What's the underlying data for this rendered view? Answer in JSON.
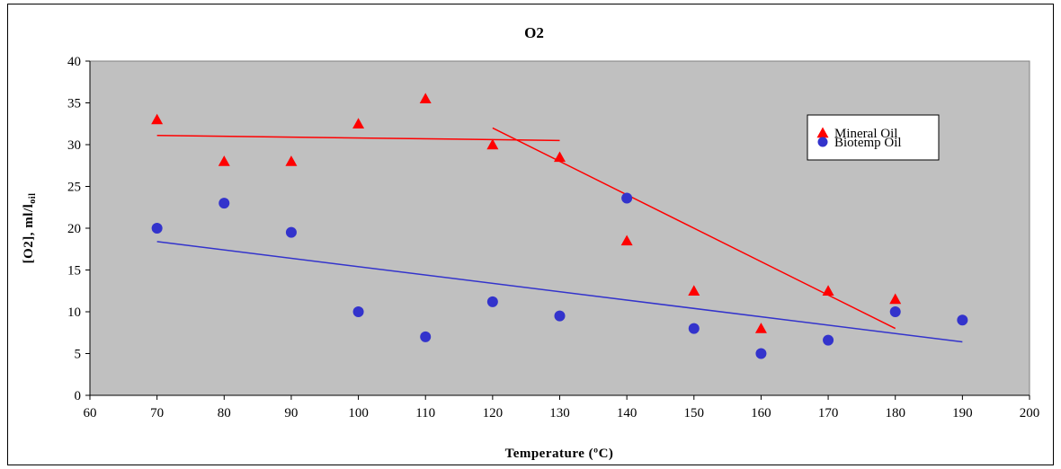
{
  "chart_data": {
    "type": "scatter",
    "title": "O2",
    "xlabel": "Temperature (ºC)",
    "ylabel_main": "[O2],  ml/l",
    "ylabel_sub": "oil",
    "xlim": [
      60,
      200
    ],
    "ylim": [
      0,
      40
    ],
    "x_ticks": [
      60,
      70,
      80,
      90,
      100,
      110,
      120,
      130,
      140,
      150,
      160,
      170,
      180,
      190,
      200
    ],
    "y_ticks": [
      0,
      5,
      10,
      15,
      20,
      25,
      30,
      35,
      40
    ],
    "grid": false,
    "plot_background": "#c0c0c0",
    "legend_position": "top-right",
    "series": [
      {
        "name": "Mineral Oil",
        "marker": "triangle",
        "color": "#ff0000",
        "points": [
          [
            70,
            33
          ],
          [
            80,
            28
          ],
          [
            90,
            28
          ],
          [
            100,
            32.5
          ],
          [
            110,
            35.5
          ],
          [
            120,
            30
          ],
          [
            130,
            28.5
          ],
          [
            140,
            18.5
          ],
          [
            150,
            12.5
          ],
          [
            160,
            8
          ],
          [
            170,
            12.5
          ],
          [
            180,
            11.5
          ]
        ]
      },
      {
        "name": "Biotemp Oil",
        "marker": "circle",
        "color": "#3333cc",
        "points": [
          [
            70,
            20
          ],
          [
            80,
            23
          ],
          [
            90,
            19.5
          ],
          [
            100,
            10
          ],
          [
            110,
            7
          ],
          [
            120,
            11.2
          ],
          [
            130,
            9.5
          ],
          [
            140,
            23.6
          ],
          [
            150,
            8
          ],
          [
            160,
            5
          ],
          [
            170,
            6.6
          ],
          [
            180,
            10
          ],
          [
            190,
            9
          ]
        ]
      }
    ],
    "trend_lines": [
      {
        "series": "Mineral Oil",
        "color": "#ff0000",
        "from": [
          70,
          31.1
        ],
        "to": [
          130,
          30.5
        ]
      },
      {
        "series": "Mineral Oil",
        "color": "#ff0000",
        "from": [
          120,
          32
        ],
        "to": [
          180,
          8
        ]
      },
      {
        "series": "Biotemp Oil",
        "color": "#3333cc",
        "from": [
          70,
          18.4
        ],
        "to": [
          190,
          6.4
        ]
      }
    ]
  }
}
